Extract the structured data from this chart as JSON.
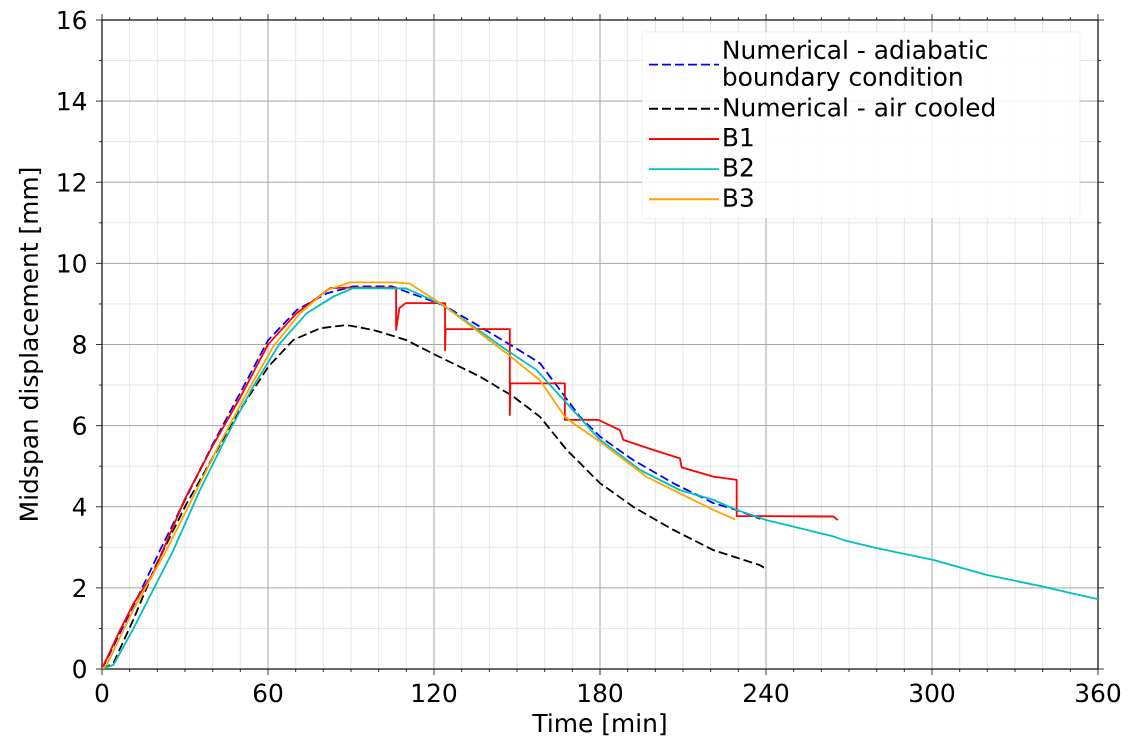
{
  "chart_data": {
    "type": "line",
    "xlabel": "Time [min]",
    "ylabel": "Midspan displacement [mm]",
    "xlim": [
      0,
      360
    ],
    "ylim": [
      0,
      16
    ],
    "xticks": [
      0,
      60,
      120,
      180,
      240,
      300,
      360
    ],
    "yticks": [
      0,
      2,
      4,
      6,
      8,
      10,
      12,
      14,
      16
    ],
    "grid": true,
    "legend": "top right",
    "marker": "none",
    "series": [
      {
        "name": "Numerical - adiabatic boundary condition",
        "color": "#0000ff",
        "line_style": "dashed",
        "x": [
          0,
          11.3,
          21,
          30.6,
          40.2,
          49.9,
          60,
          70.4,
          81.2,
          90.8,
          105,
          110,
          123.4,
          136.6,
          148.6,
          158.3,
          165.5,
          172.7,
          180,
          192,
          206.5,
          221,
          229.4,
          238
        ],
        "values": [
          0,
          1.54,
          2.93,
          4.25,
          5.56,
          6.8,
          8.1,
          8.85,
          9.26,
          9.43,
          9.43,
          9.3,
          8.97,
          8.44,
          7.95,
          7.54,
          6.88,
          6.22,
          5.73,
          5.15,
          4.58,
          4.09,
          3.92,
          3.7
        ]
      },
      {
        "name": "Numerical - air cooled",
        "color": "#000000",
        "line_style": "dashed",
        "x": [
          0,
          4.1,
          11.3,
          19.8,
          30.6,
          40.2,
          49.9,
          60.1,
          69.1,
          78.8,
          88.4,
          98,
          110,
          120,
          136.6,
          148.6,
          158.3,
          168,
          180,
          192,
          206.5,
          221,
          237.8,
          240
        ],
        "values": [
          0,
          0.14,
          1.21,
          2.6,
          4.08,
          5.23,
          6.39,
          7.45,
          8.11,
          8.4,
          8.48,
          8.36,
          8.11,
          7.76,
          7.21,
          6.72,
          6.22,
          5.4,
          4.58,
          4.0,
          3.43,
          2.93,
          2.56,
          2.47
        ]
      },
      {
        "name": "B1",
        "color": "#ff0000",
        "line_style": "solid",
        "x": [
          0,
          6.5,
          11.3,
          18.5,
          30,
          40,
          50,
          60,
          70,
          82.4,
          90,
          106.3,
          106.3,
          107.5,
          109.8,
          124,
          124,
          124.2,
          147.4,
          147.4,
          147.6,
          167.3,
          167.3,
          179.5,
          187.2,
          188.4,
          199.2,
          208.9,
          209.5,
          221,
          229.4,
          229.4,
          264.3,
          266
        ],
        "values": [
          0,
          0.96,
          1.6,
          2.36,
          4.2,
          5.5,
          6.7,
          8.0,
          8.75,
          9.39,
          9.4,
          9.4,
          8.36,
          8.9,
          9.02,
          9.02,
          7.86,
          8.38,
          8.38,
          6.26,
          7.04,
          7.04,
          6.14,
          6.14,
          5.89,
          5.65,
          5.4,
          5.19,
          4.97,
          4.74,
          4.66,
          3.77,
          3.76,
          3.67
        ]
      },
      {
        "name": "B2",
        "color": "#00bfbf",
        "line_style": "solid",
        "x": [
          0,
          4.1,
          11.3,
          25.8,
          35.4,
          45,
          54.6,
          64.3,
          74,
          83.6,
          90.8,
          110,
          123.4,
          146.3,
          157.1,
          168,
          180,
          194.4,
          208.9,
          221,
          229.4,
          240.2,
          249.9,
          259.5,
          264.3,
          268,
          280,
          300.4,
          319.7,
          340.2,
          351,
          360
        ],
        "values": [
          0,
          0.1,
          0.99,
          2.93,
          4.41,
          5.73,
          6.96,
          8.03,
          8.77,
          9.18,
          9.39,
          9.38,
          8.97,
          7.86,
          7.37,
          6.55,
          5.65,
          4.91,
          4.41,
          4.17,
          3.92,
          3.67,
          3.51,
          3.35,
          3.27,
          3.18,
          2.98,
          2.69,
          2.32,
          2.03,
          1.86,
          1.72
        ]
      },
      {
        "name": "B3",
        "color": "#ffa500",
        "line_style": "solid",
        "x": [
          0,
          1.7,
          11.3,
          23.3,
          33,
          42.6,
          52.3,
          61.9,
          71.6,
          81.2,
          89.6,
          106,
          111.3,
          123.4,
          146.3,
          158.3,
          167.3,
          170.3,
          180,
          196.8,
          208.9,
          221,
          228.8
        ],
        "values": [
          0,
          0.1,
          1.46,
          2.93,
          4.25,
          5.56,
          6.8,
          7.95,
          8.77,
          9.34,
          9.53,
          9.53,
          9.5,
          8.97,
          7.78,
          7.12,
          6.22,
          6.06,
          5.6,
          4.74,
          4.33,
          3.92,
          3.69
        ]
      }
    ]
  }
}
